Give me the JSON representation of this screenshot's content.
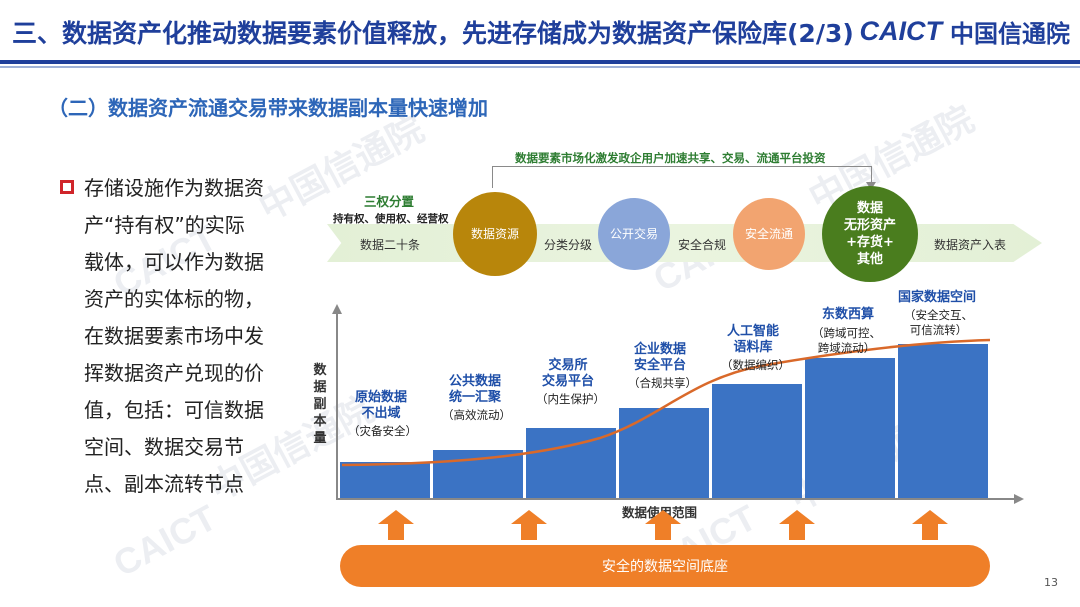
{
  "header": {
    "title": "三、数据资产化推动数据要素价值释放，先进存储成为数据资产保险库(2/3)",
    "logo_mark": "CAICT",
    "logo_cn": "中国信通院"
  },
  "subtitle": "（二）数据资产流通交易带来数据副本量快速增加",
  "bullet": {
    "text": "存储设施作为数据资产“持有权”的实际载体，可以作为数据资产的实体标的物，在数据要素市场中发挥数据资产兑现的价值，包括：可信数据空间、数据交易节点、副本流转节点"
  },
  "flow": {
    "top_text": "数据要素市场化激发政企用户加速共享、交易、流通平台投资",
    "rights_title": "三权分置",
    "rights_sub": "持有权、使用权、经营权",
    "label_start": "数据二十条",
    "circle1": "数据资源",
    "label_mid1": "分类分级",
    "circle2": "公开交易",
    "label_mid2": "安全合规",
    "circle3": "安全流通",
    "circle4": [
      "数据",
      "无形资产",
      "+存货+",
      "其他"
    ],
    "label_end": "数据资产入表"
  },
  "chart": {
    "y_label": "数据副本量",
    "x_label": "数据使用范围",
    "steps": [
      {
        "title": [
          "原始数据",
          "不出域"
        ],
        "note": "（灾备安全）"
      },
      {
        "title": [
          "公共数据",
          "统一汇聚"
        ],
        "note": "（高效流动）"
      },
      {
        "title": [
          "交易所",
          "交易平台"
        ],
        "note": "（内生保护）"
      },
      {
        "title": [
          "企业数据",
          "安全平台"
        ],
        "note": "（合规共享）"
      },
      {
        "title": [
          "人工智能",
          "语料库"
        ],
        "note": "（数据编织）"
      },
      {
        "title": [
          "东数西算"
        ],
        "note2": [
          "（跨域可控、",
          "跨域流动）"
        ]
      },
      {
        "title": [
          "国家数据空间"
        ],
        "note2": [
          "（安全交互、",
          "可信流转）"
        ]
      }
    ],
    "colors": {
      "bar": "#3b73c4",
      "curve": "#d9692a",
      "arrow": "#ef7f28"
    }
  },
  "base_bar": "安全的数据空间底座",
  "page_number": "13"
}
